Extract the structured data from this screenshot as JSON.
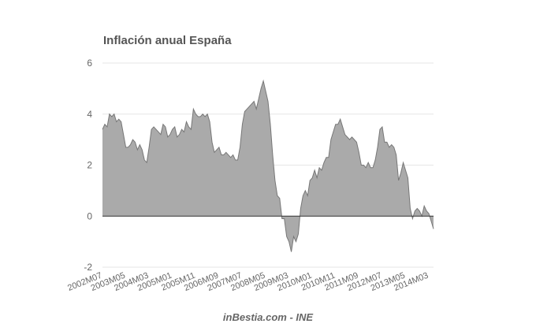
{
  "chart_data": {
    "type": "area",
    "title": "Inflación anual España",
    "source": "inBestia.com - INE",
    "xlabel": "",
    "ylabel": "",
    "ylim": [
      -2,
      6
    ],
    "yticks": [
      -2,
      0,
      2,
      4,
      6
    ],
    "grid": true,
    "legend": "none",
    "x_start": "2002M07",
    "x_end": "2014M09",
    "xticks": [
      "2002M07",
      "2003M05",
      "2004M03",
      "2005M01",
      "2005M11",
      "2006M09",
      "2007M07",
      "2008M05",
      "2009M03",
      "2010M01",
      "2010M11",
      "2011M09",
      "2012M07",
      "2013M05",
      "2014M03"
    ],
    "series": [
      {
        "color": "#aaaaaa",
        "values": [
          3.4,
          3.6,
          3.5,
          4.0,
          3.9,
          4.0,
          3.7,
          3.8,
          3.7,
          3.2,
          2.7,
          2.7,
          2.8,
          3.0,
          2.9,
          2.6,
          2.8,
          2.6,
          2.2,
          2.1,
          2.7,
          3.4,
          3.5,
          3.4,
          3.3,
          3.2,
          3.6,
          3.5,
          3.1,
          3.2,
          3.4,
          3.5,
          3.1,
          3.2,
          3.4,
          3.3,
          3.7,
          3.5,
          3.4,
          4.2,
          4.0,
          3.9,
          3.9,
          4.0,
          3.9,
          4.0,
          3.7,
          2.9,
          2.5,
          2.6,
          2.7,
          2.4,
          2.4,
          2.5,
          2.4,
          2.3,
          2.4,
          2.2,
          2.2,
          2.7,
          3.6,
          4.1,
          4.2,
          4.3,
          4.4,
          4.5,
          4.2,
          4.6,
          5.0,
          5.3,
          4.9,
          4.5,
          3.6,
          2.4,
          1.4,
          0.8,
          0.7,
          -0.1,
          -0.1,
          -0.8,
          -1.0,
          -1.4,
          -0.8,
          -1.0,
          -0.7,
          0.3,
          0.8,
          1.0,
          0.8,
          1.4,
          1.5,
          1.8,
          1.5,
          1.9,
          1.8,
          2.1,
          2.3,
          2.3,
          3.0,
          3.3,
          3.6,
          3.6,
          3.8,
          3.5,
          3.2,
          3.1,
          3.0,
          3.1,
          3.0,
          2.9,
          2.5,
          2.0,
          2.0,
          1.9,
          2.1,
          1.9,
          1.9,
          2.2,
          2.7,
          3.4,
          3.5,
          2.9,
          2.9,
          2.7,
          2.8,
          2.7,
          2.4,
          1.4,
          1.7,
          2.1,
          1.8,
          1.5,
          0.3,
          -0.1,
          0.2,
          0.3,
          0.2,
          0.0,
          0.4,
          0.2,
          0.1,
          -0.2,
          -0.5
        ]
      }
    ]
  }
}
